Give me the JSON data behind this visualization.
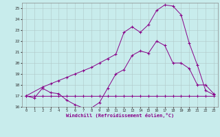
{
  "xlabel": "Windchill (Refroidissement éolien,°C)",
  "bg_color": "#c8ecec",
  "line_color": "#880088",
  "grid_color": "#b0c8c8",
  "xlim": [
    -0.5,
    23.5
  ],
  "ylim": [
    16,
    25.5
  ],
  "xticks": [
    0,
    1,
    2,
    3,
    4,
    5,
    6,
    7,
    8,
    9,
    10,
    11,
    12,
    13,
    14,
    15,
    16,
    17,
    18,
    19,
    20,
    21,
    22,
    23
  ],
  "yticks": [
    16,
    17,
    18,
    19,
    20,
    21,
    22,
    23,
    24,
    25
  ],
  "curve1_x": [
    0,
    1,
    2,
    3,
    4,
    5,
    6,
    7,
    8,
    9,
    10,
    11,
    12,
    13,
    14,
    15,
    16,
    17,
    18,
    19,
    20,
    21,
    22,
    23
  ],
  "curve1_y": [
    17.0,
    16.8,
    17.7,
    17.3,
    17.2,
    16.6,
    16.2,
    15.9,
    15.9,
    16.4,
    17.7,
    19.0,
    19.4,
    20.7,
    21.1,
    20.9,
    22.0,
    21.6,
    20.0,
    20.0,
    19.5,
    18.0,
    18.0,
    17.2
  ],
  "curve2_x": [
    0,
    1,
    2,
    3,
    4,
    5,
    6,
    7,
    8,
    9,
    10,
    11,
    12,
    13,
    14,
    15,
    16,
    17,
    18,
    19,
    20,
    21,
    22,
    23
  ],
  "curve2_y": [
    17.0,
    17.0,
    17.0,
    17.0,
    17.0,
    17.0,
    17.0,
    17.0,
    17.0,
    17.0,
    17.0,
    17.0,
    17.0,
    17.0,
    17.0,
    17.0,
    17.0,
    17.0,
    17.0,
    17.0,
    17.0,
    17.0,
    17.0,
    17.0
  ],
  "curve3_x": [
    0,
    2,
    3,
    4,
    5,
    6,
    7,
    8,
    9,
    10,
    11,
    12,
    13,
    14,
    15,
    16,
    17,
    18,
    19,
    20,
    21,
    22,
    23
  ],
  "curve3_y": [
    17.0,
    17.8,
    18.1,
    18.4,
    18.7,
    19.0,
    19.3,
    19.6,
    20.0,
    20.4,
    20.8,
    22.8,
    23.3,
    22.8,
    23.5,
    24.8,
    25.3,
    25.2,
    24.4,
    21.8,
    19.8,
    17.5,
    17.1
  ]
}
